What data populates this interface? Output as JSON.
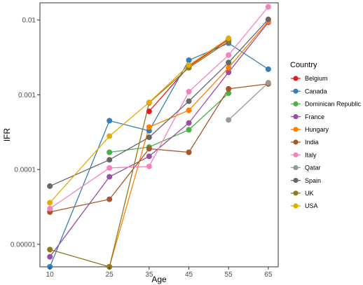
{
  "chart_data": {
    "type": "line",
    "title": "",
    "xlabel": "Age",
    "ylabel": "IFR",
    "y_scale": "log10",
    "ylim": [
      5e-06,
      0.017
    ],
    "x_ticks": [
      10,
      25,
      35,
      45,
      55,
      65
    ],
    "x_tick_labels": [
      "10",
      "25",
      "35",
      "45",
      "55",
      "65"
    ],
    "y_ticks": [
      1e-05,
      0.0001,
      0.001,
      0.01
    ],
    "y_tick_labels": [
      "0.00001",
      "0.0001",
      "0.001",
      "0.01"
    ],
    "grid": false,
    "legend": {
      "title": "Country",
      "position": "right"
    },
    "series": [
      {
        "name": "Belgium",
        "color": "#e41a1c",
        "points": [
          [
            35,
            0.0006
          ],
          [
            45,
            0.0024
          ],
          [
            55,
            0.0055
          ]
        ]
      },
      {
        "name": "Canada",
        "color": "#377eb8",
        "points": [
          [
            10,
            5e-06
          ],
          [
            25,
            0.00045
          ],
          [
            35,
            0.00033
          ],
          [
            45,
            0.0029
          ],
          [
            55,
            0.0049
          ],
          [
            65,
            0.0022
          ]
        ]
      },
      {
        "name": "Dominican Republic",
        "color": "#4daf4a",
        "points": [
          [
            25,
            0.00017
          ],
          [
            35,
            0.0002
          ],
          [
            45,
            0.00034
          ],
          [
            55,
            0.00105
          ]
        ]
      },
      {
        "name": "France",
        "color": "#984ea3",
        "points": [
          [
            10,
            6.8e-06
          ],
          [
            25,
            8e-05
          ],
          [
            35,
            0.00015
          ],
          [
            45,
            0.00042
          ],
          [
            55,
            0.002
          ],
          [
            65,
            0.0093
          ]
        ]
      },
      {
        "name": "Hungary",
        "color": "#ff7f00",
        "points": [
          [
            25,
            5e-06
          ],
          [
            35,
            0.00037
          ],
          [
            45,
            0.00062
          ],
          [
            55,
            0.0023
          ],
          [
            65,
            0.0096
          ]
        ]
      },
      {
        "name": "India",
        "color": "#a65628",
        "points": [
          [
            10,
            2.7e-05
          ],
          [
            25,
            4e-05
          ],
          [
            35,
            0.00019
          ],
          [
            45,
            0.00017
          ],
          [
            55,
            0.0012
          ],
          [
            65,
            0.0014
          ]
        ]
      },
      {
        "name": "Italy",
        "color": "#f781bf",
        "points": [
          [
            10,
            3e-05
          ],
          [
            25,
            0.000105
          ],
          [
            35,
            0.00011
          ],
          [
            45,
            0.0011
          ],
          [
            55,
            0.0034
          ],
          [
            65,
            0.015
          ]
        ]
      },
      {
        "name": "Qatar",
        "color": "#999999",
        "points": [
          [
            55,
            0.00046
          ],
          [
            65,
            0.00145
          ]
        ]
      },
      {
        "name": "Spain",
        "color": "#666666",
        "points": [
          [
            10,
            6e-05
          ],
          [
            25,
            0.000135
          ],
          [
            35,
            0.00027
          ],
          [
            45,
            0.00082
          ],
          [
            55,
            0.0027
          ],
          [
            65,
            0.0102
          ]
        ]
      },
      {
        "name": "UK",
        "color": "#8c7a1b",
        "points": [
          [
            10,
            8.5e-06
          ],
          [
            25,
            5e-06
          ],
          [
            35,
            0.00078
          ],
          [
            45,
            0.0023
          ],
          [
            55,
            0.0052
          ]
        ]
      },
      {
        "name": "USA",
        "color": "#e6ab02",
        "points": [
          [
            10,
            3.6e-05
          ],
          [
            25,
            0.00028
          ],
          [
            35,
            0.00079
          ],
          [
            45,
            0.0025
          ],
          [
            55,
            0.0057
          ]
        ]
      }
    ]
  }
}
